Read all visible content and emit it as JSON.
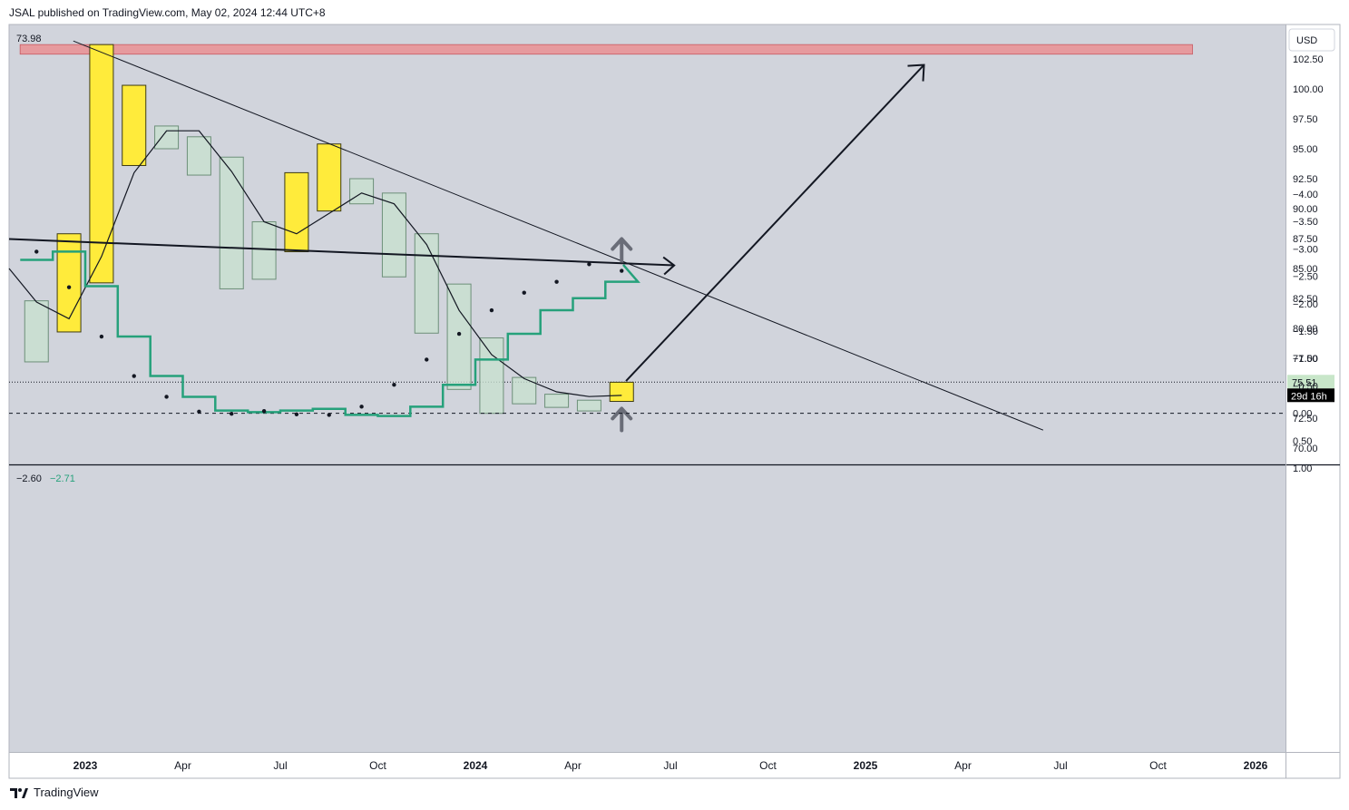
{
  "header": {
    "published_line": "JSAL published on TradingView.com, May 02, 2024 12:44 UTC+8"
  },
  "footer": {
    "brand": "TradingView"
  },
  "price_pane": {
    "corner_value": "73.98",
    "currency_button": "USD",
    "last_price_label": "75.51",
    "countdown_label": "29d 16h",
    "background": "#d1d4dc",
    "up_candle_color": "#ffeb3b",
    "down_candle_color": "#c8e0cf",
    "resistance_color": "#e69a9e",
    "y_ticks": [
      "102.50",
      "100.00",
      "97.50",
      "95.00",
      "92.50",
      "90.00",
      "87.50",
      "85.00",
      "82.50",
      "80.00",
      "77.50",
      "72.50",
      "70.00"
    ]
  },
  "indicator_pane": {
    "value_1": "−2.60",
    "value_2": "−2.71",
    "line_color": "#26a17b",
    "y_ticks": [
      "1.00",
      "0.50",
      "0.00",
      "−0.50",
      "−1.00",
      "−1.50",
      "−2.00",
      "−2.50",
      "−3.00",
      "−3.50",
      "−4.00"
    ]
  },
  "x_axis": {
    "ticks": [
      "2023",
      "Apr",
      "Jul",
      "Oct",
      "2024",
      "Apr",
      "Jul",
      "Oct",
      "2025",
      "Apr",
      "Jul",
      "Oct",
      "2026"
    ]
  },
  "chart_data": [
    {
      "type": "candlestick",
      "interval": "1M",
      "currency": "USD",
      "ylim": [
        68.5,
        105
      ],
      "last_price": 75.51,
      "candles": [
        {
          "t": "2022-11",
          "o": 82.3,
          "c": 77.2,
          "h": 82.3,
          "l": 77.2
        },
        {
          "t": "2022-12",
          "o": 79.7,
          "c": 87.9,
          "h": 87.9,
          "l": 79.7
        },
        {
          "t": "2023-01",
          "o": 83.8,
          "c": 103.7,
          "h": 103.7,
          "l": 83.8
        },
        {
          "t": "2023-02",
          "o": 93.6,
          "c": 100.3,
          "h": 100.3,
          "l": 93.6
        },
        {
          "t": "2023-03",
          "o": 96.9,
          "c": 95.0,
          "h": 96.9,
          "l": 95.0
        },
        {
          "t": "2023-04",
          "o": 96.0,
          "c": 92.8,
          "h": 96.0,
          "l": 92.8
        },
        {
          "t": "2023-05",
          "o": 94.3,
          "c": 83.3,
          "h": 94.3,
          "l": 83.3
        },
        {
          "t": "2023-06",
          "o": 88.9,
          "c": 84.1,
          "h": 88.9,
          "l": 84.1
        },
        {
          "t": "2023-07",
          "o": 86.4,
          "c": 93.0,
          "h": 93.0,
          "l": 86.4
        },
        {
          "t": "2023-08",
          "o": 89.8,
          "c": 95.4,
          "h": 95.4,
          "l": 89.8
        },
        {
          "t": "2023-09",
          "o": 92.5,
          "c": 90.4,
          "h": 92.5,
          "l": 90.4
        },
        {
          "t": "2023-10",
          "o": 91.3,
          "c": 84.3,
          "h": 91.3,
          "l": 84.3
        },
        {
          "t": "2023-11",
          "o": 87.9,
          "c": 79.6,
          "h": 87.9,
          "l": 79.6
        },
        {
          "t": "2023-12",
          "o": 83.7,
          "c": 74.9,
          "h": 83.7,
          "l": 74.9
        },
        {
          "t": "2024-01",
          "o": 79.2,
          "c": 72.9,
          "h": 79.2,
          "l": 72.9
        },
        {
          "t": "2024-02",
          "o": 75.9,
          "c": 73.7,
          "h": 75.9,
          "l": 73.7
        },
        {
          "t": "2024-03",
          "o": 74.5,
          "c": 73.4,
          "h": 74.5,
          "l": 73.4
        },
        {
          "t": "2024-04",
          "o": 74.0,
          "c": 73.1,
          "h": 74.0,
          "l": 73.1
        },
        {
          "t": "2024-05",
          "o": 73.9,
          "c": 75.5,
          "h": 75.5,
          "l": 73.9
        }
      ],
      "moving_average": [
        {
          "t": "2022-10",
          "v": 85.0
        },
        {
          "t": "2022-11",
          "v": 82.2
        },
        {
          "t": "2022-12",
          "v": 80.8
        },
        {
          "t": "2023-01",
          "v": 86.0
        },
        {
          "t": "2023-02",
          "v": 93.0
        },
        {
          "t": "2023-03",
          "v": 96.5
        },
        {
          "t": "2023-04",
          "v": 96.5
        },
        {
          "t": "2023-05",
          "v": 93.1
        },
        {
          "t": "2023-06",
          "v": 88.9
        },
        {
          "t": "2023-07",
          "v": 87.9
        },
        {
          "t": "2023-08",
          "v": 89.6
        },
        {
          "t": "2023-09",
          "v": 91.3
        },
        {
          "t": "2023-10",
          "v": 90.4
        },
        {
          "t": "2023-11",
          "v": 87.0
        },
        {
          "t": "2023-12",
          "v": 81.5
        },
        {
          "t": "2024-01",
          "v": 77.8
        },
        {
          "t": "2024-02",
          "v": 75.8
        },
        {
          "t": "2024-03",
          "v": 74.7
        },
        {
          "t": "2024-04",
          "v": 74.3
        },
        {
          "t": "2024-05",
          "v": 74.4
        }
      ],
      "annotations": {
        "resistance_zone": {
          "from": "2022-12",
          "to": "2025-10",
          "y_low": 102.9,
          "y_high": 103.7
        },
        "trendline": [
          {
            "t": "2022-12-20",
            "v": 104.0
          },
          {
            "t": "2025-06-15",
            "v": 71.5
          }
        ],
        "projection_arrow": [
          {
            "t": "2024-05-20",
            "v": 75.6
          },
          {
            "t": "2025-02-25",
            "v": 102.0
          }
        ],
        "up_arrow_at": "2024-05"
      }
    },
    {
      "type": "line",
      "name": "oscillator",
      "ylim": [
        -4.1,
        1.0
      ],
      "zero_line": 0,
      "step_line": [
        {
          "t": "2022-11",
          "v": -2.8
        },
        {
          "t": "2022-12",
          "v": -2.95
        },
        {
          "t": "2023-01",
          "v": -2.32
        },
        {
          "t": "2023-02",
          "v": -1.4
        },
        {
          "t": "2023-03",
          "v": -0.68
        },
        {
          "t": "2023-04",
          "v": -0.3
        },
        {
          "t": "2023-05",
          "v": -0.05
        },
        {
          "t": "2023-06",
          "v": -0.02
        },
        {
          "t": "2023-07",
          "v": -0.05
        },
        {
          "t": "2023-08",
          "v": -0.08
        },
        {
          "t": "2023-09",
          "v": 0.03
        },
        {
          "t": "2023-10",
          "v": 0.05
        },
        {
          "t": "2023-11",
          "v": -0.12
        },
        {
          "t": "2023-12",
          "v": -0.52
        },
        {
          "t": "2024-01",
          "v": -0.98
        },
        {
          "t": "2024-02",
          "v": -1.45
        },
        {
          "t": "2024-03",
          "v": -1.88
        },
        {
          "t": "2024-04",
          "v": -2.1
        },
        {
          "t": "2024-05",
          "v": -2.4
        },
        {
          "t": "2024-06",
          "v": -2.71
        }
      ],
      "dots": [
        {
          "t": "2022-11",
          "v": -2.95
        },
        {
          "t": "2022-12",
          "v": -2.3
        },
        {
          "t": "2023-01",
          "v": -1.4
        },
        {
          "t": "2023-02",
          "v": -0.68
        },
        {
          "t": "2023-03",
          "v": -0.3
        },
        {
          "t": "2023-04",
          "v": -0.03
        },
        {
          "t": "2023-05",
          "v": 0.01
        },
        {
          "t": "2023-06",
          "v": -0.04
        },
        {
          "t": "2023-07",
          "v": 0.02
        },
        {
          "t": "2023-08",
          "v": 0.03
        },
        {
          "t": "2023-09",
          "v": -0.12
        },
        {
          "t": "2023-10",
          "v": -0.52
        },
        {
          "t": "2023-11",
          "v": -0.98
        },
        {
          "t": "2023-12",
          "v": -1.45
        },
        {
          "t": "2024-01",
          "v": -1.88
        },
        {
          "t": "2024-02",
          "v": -2.2
        },
        {
          "t": "2024-03",
          "v": -2.4
        },
        {
          "t": "2024-04",
          "v": -2.72
        },
        {
          "t": "2024-05",
          "v": -2.6
        }
      ],
      "annotations": {
        "support_line": [
          {
            "t": "2022-10",
            "v": -3.18
          },
          {
            "t": "2024-06",
            "v": -2.7
          }
        ],
        "up_arrow_at": "2024-05"
      }
    }
  ]
}
